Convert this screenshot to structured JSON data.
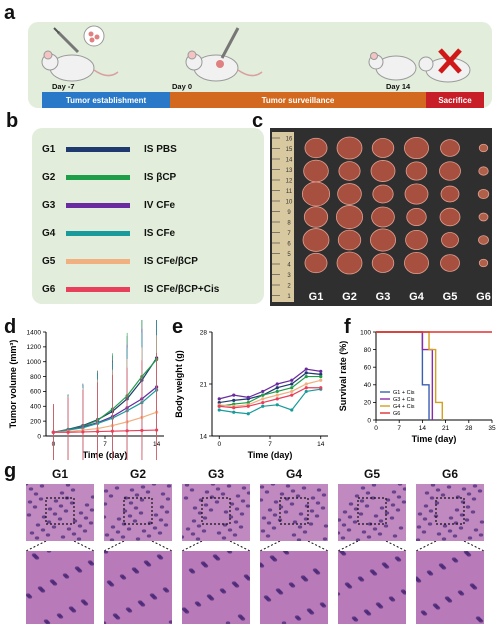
{
  "panels": {
    "a": "a",
    "b": "b",
    "c": "c",
    "d": "d",
    "e": "e",
    "f": "f",
    "g": "g"
  },
  "timeline": {
    "days": [
      "Day -7",
      "Day 0",
      "Day 14"
    ],
    "phases": [
      "Tumor establishment",
      "Tumor surveillance",
      "Sacrifice"
    ],
    "colors": [
      "#2a78c8",
      "#d2691e",
      "#c81e28"
    ]
  },
  "legend": [
    {
      "code": "G1",
      "label": "IS PBS",
      "color": "#1f3a6e"
    },
    {
      "code": "G2",
      "label": "IS βCP",
      "color": "#1f9e4a"
    },
    {
      "code": "G3",
      "label": "IV CFe",
      "color": "#6a2ba0"
    },
    {
      "code": "G4",
      "label": "IS CFe",
      "color": "#1a9b9b"
    },
    {
      "code": "G5",
      "label": "IS CFe/βCP",
      "color": "#f0b080"
    },
    {
      "code": "G6",
      "label": "IS CFe/βCP+Cis",
      "color": "#e8405a"
    }
  ],
  "photo": {
    "groups": [
      "G1",
      "G2",
      "G3",
      "G4",
      "G5",
      "G6"
    ],
    "ruler": [
      "16",
      "15",
      "14",
      "13",
      "12",
      "11",
      "10",
      "9",
      "8",
      "7",
      "6",
      "5",
      "4",
      "3",
      "2",
      "1"
    ]
  },
  "histology": {
    "groups": [
      "G1",
      "G2",
      "G3",
      "G4",
      "G5",
      "G6"
    ]
  },
  "chart_data": [
    {
      "type": "line",
      "xlabel": "Time (day)",
      "ylabel": "Tumor volume (mm³)",
      "xticks": [
        "0",
        "7",
        "14"
      ],
      "yticks": [
        "0",
        "200",
        "400",
        "600",
        "800",
        "1000",
        "1200",
        "1400"
      ],
      "xlim": [
        -1,
        15
      ],
      "ylim": [
        0,
        1400
      ],
      "x": [
        0,
        2,
        4,
        6,
        8,
        10,
        12,
        14
      ],
      "series": [
        {
          "values": [
            50,
            90,
            140,
            220,
            330,
            500,
            750,
            1050
          ],
          "color": "#1f3a6e"
        },
        {
          "values": [
            50,
            85,
            130,
            210,
            360,
            540,
            800,
            1030
          ],
          "color": "#1f9e4a"
        },
        {
          "values": [
            50,
            80,
            120,
            180,
            260,
            380,
            500,
            660
          ],
          "color": "#6a2ba0"
        },
        {
          "values": [
            50,
            80,
            110,
            170,
            240,
            340,
            450,
            620
          ],
          "color": "#1a9b9b"
        },
        {
          "values": [
            50,
            60,
            80,
            100,
            140,
            190,
            250,
            320
          ],
          "color": "#f0b080"
        },
        {
          "values": [
            50,
            50,
            55,
            60,
            65,
            70,
            75,
            80
          ],
          "color": "#e8405a"
        }
      ]
    },
    {
      "type": "line",
      "xlabel": "Time (day)",
      "ylabel": "Body weight (g)",
      "xticks": [
        "0",
        "7",
        "14"
      ],
      "yticks": [
        "14",
        "21",
        "28"
      ],
      "xlim": [
        -1,
        15
      ],
      "ylim": [
        14,
        28
      ],
      "x": [
        0,
        2,
        4,
        6,
        8,
        10,
        12,
        14
      ],
      "series": [
        {
          "values": [
            18.5,
            18.8,
            19.0,
            19.5,
            20.5,
            21.0,
            22.5,
            22.3
          ],
          "color": "#1f3a6e"
        },
        {
          "values": [
            18.0,
            18.3,
            18.5,
            19.5,
            20.0,
            20.5,
            22.0,
            22.0
          ],
          "color": "#1f9e4a"
        },
        {
          "values": [
            19.0,
            19.5,
            19.2,
            20.0,
            21.0,
            21.5,
            23.0,
            22.7
          ],
          "color": "#6a2ba0"
        },
        {
          "values": [
            17.5,
            17.2,
            17.0,
            18.0,
            18.2,
            17.5,
            20.0,
            20.3
          ],
          "color": "#1a9b9b"
        },
        {
          "values": [
            18.2,
            18.0,
            18.2,
            19.0,
            19.5,
            20.0,
            21.0,
            21.5
          ],
          "color": "#f0b080"
        },
        {
          "values": [
            18.0,
            17.8,
            18.0,
            18.5,
            19.0,
            19.5,
            20.5,
            20.5
          ],
          "color": "#e8405a"
        }
      ]
    },
    {
      "type": "line",
      "xlabel": "Time (day)",
      "ylabel": "Survival rate (%)",
      "xticks": [
        "0",
        "7",
        "14",
        "21",
        "28",
        "35"
      ],
      "yticks": [
        "0",
        "20",
        "40",
        "60",
        "80",
        "100"
      ],
      "xlim": [
        0,
        35
      ],
      "ylim": [
        0,
        100
      ],
      "legend_position": "bottom-left",
      "series": [
        {
          "name": "G1 + Cis",
          "color": "#3a5fb0",
          "steps": [
            [
              0,
              100
            ],
            [
              14,
              100
            ],
            [
              14,
              40
            ],
            [
              16,
              40
            ],
            [
              16,
              0
            ]
          ]
        },
        {
          "name": "G3 + Cis",
          "color": "#8a2ba8",
          "steps": [
            [
              0,
              100
            ],
            [
              14,
              100
            ],
            [
              14,
              80
            ],
            [
              17,
              80
            ],
            [
              17,
              0
            ]
          ]
        },
        {
          "name": "G4 + Cis",
          "color": "#d4a020",
          "steps": [
            [
              0,
              100
            ],
            [
              16,
              100
            ],
            [
              16,
              80
            ],
            [
              18,
              80
            ],
            [
              18,
              20
            ],
            [
              20,
              20
            ],
            [
              20,
              0
            ]
          ]
        },
        {
          "name": "G6",
          "color": "#e03030",
          "steps": [
            [
              0,
              100
            ],
            [
              35,
              100
            ]
          ]
        }
      ]
    }
  ]
}
